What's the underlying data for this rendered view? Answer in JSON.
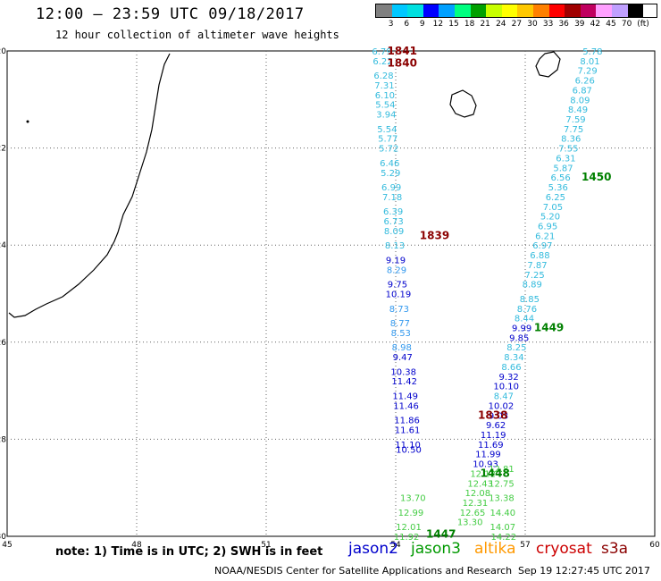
{
  "title": "12:00 – 23:59 UTC 09/18/2017",
  "subtitle": "12 hour collection of altimeter wave heights",
  "legend": {
    "unit": "(ft)",
    "ticks": [
      "3",
      "6",
      "9",
      "12",
      "15",
      "18",
      "21",
      "24",
      "27",
      "30",
      "33",
      "36",
      "39",
      "42",
      "45",
      "70"
    ],
    "colors": [
      "#808080",
      "#00c8ff",
      "#00e0e0",
      "#0000ff",
      "#00a0ff",
      "#00ff80",
      "#00a000",
      "#c8ff00",
      "#ffff00",
      "#ffc800",
      "#ff8000",
      "#ff0000",
      "#a00000",
      "#c00060",
      "#ffa0ff",
      "#c0a0ff",
      "#000000"
    ]
  },
  "axes": {
    "lon_ticks": [
      "45",
      "48",
      "51",
      "54",
      "57",
      "60"
    ],
    "lat_ticks": [
      "-20",
      "-22",
      "-24",
      "-26",
      "-28",
      "-30"
    ],
    "lon_range": [
      45,
      60
    ],
    "lat_range": [
      -20,
      -30
    ]
  },
  "tracks": [
    {
      "satellite": "jason2",
      "color": "#0000c0",
      "points": [
        {
          "lat": -20.0,
          "lon": 53.68,
          "v": "6.79",
          "c": "#33bbdd"
        },
        {
          "lat": -20.2,
          "lon": 53.7,
          "v": "6.22",
          "c": "#33bbdd"
        },
        {
          "lat": -20.5,
          "lon": 53.72,
          "v": "6.28",
          "c": "#33bbdd"
        },
        {
          "lat": -20.7,
          "lon": 53.74,
          "v": "7.31",
          "c": "#33bbdd"
        },
        {
          "lat": -20.9,
          "lon": 53.75,
          "v": "6.10",
          "c": "#33bbdd"
        },
        {
          "lat": -21.1,
          "lon": 53.76,
          "v": "5.54",
          "c": "#33bbdd"
        },
        {
          "lat": -21.3,
          "lon": 53.78,
          "v": "3.94",
          "c": "#33bbdd"
        },
        {
          "lat": -21.6,
          "lon": 53.8,
          "v": "5.54",
          "c": "#33bbdd"
        },
        {
          "lat": -21.8,
          "lon": 53.82,
          "v": "5.77",
          "c": "#33bbdd"
        },
        {
          "lat": -22.0,
          "lon": 53.84,
          "v": "5.72",
          "c": "#33bbdd"
        },
        {
          "lat": -22.3,
          "lon": 53.86,
          "v": "6.46",
          "c": "#33bbdd"
        },
        {
          "lat": -22.5,
          "lon": 53.88,
          "v": "5.29",
          "c": "#33bbdd"
        },
        {
          "lat": -22.8,
          "lon": 53.9,
          "v": "6.99",
          "c": "#33bbdd"
        },
        {
          "lat": -23.0,
          "lon": 53.92,
          "v": "7.18",
          "c": "#33bbdd"
        },
        {
          "lat": -23.3,
          "lon": 53.94,
          "v": "6.39",
          "c": "#33bbdd"
        },
        {
          "lat": -23.5,
          "lon": 53.95,
          "v": "6.73",
          "c": "#33bbdd"
        },
        {
          "lat": -23.7,
          "lon": 53.96,
          "v": "8.09",
          "c": "#33bbdd"
        },
        {
          "lat": -24.0,
          "lon": 53.98,
          "v": "8.13",
          "c": "#33bbdd"
        },
        {
          "lat": -24.3,
          "lon": 54.0,
          "v": "9.19",
          "c": "#0000cc"
        },
        {
          "lat": -24.5,
          "lon": 54.02,
          "v": "8.29",
          "c": "#3399ee"
        },
        {
          "lat": -24.8,
          "lon": 54.04,
          "v": "9.75",
          "c": "#0000cc"
        },
        {
          "lat": -25.0,
          "lon": 54.06,
          "v": "10.19",
          "c": "#0000cc"
        },
        {
          "lat": -25.3,
          "lon": 54.08,
          "v": "8.73",
          "c": "#3399ee"
        },
        {
          "lat": -25.6,
          "lon": 54.1,
          "v": "8.77",
          "c": "#3399ee"
        },
        {
          "lat": -25.8,
          "lon": 54.12,
          "v": "8.53",
          "c": "#3399ee"
        },
        {
          "lat": -26.1,
          "lon": 54.14,
          "v": "8.98",
          "c": "#3399ee"
        },
        {
          "lat": -26.3,
          "lon": 54.16,
          "v": "9.47",
          "c": "#0000cc"
        },
        {
          "lat": -26.6,
          "lon": 54.18,
          "v": "10.38",
          "c": "#0000cc"
        },
        {
          "lat": -26.8,
          "lon": 54.2,
          "v": "11.42",
          "c": "#0000cc"
        },
        {
          "lat": -27.1,
          "lon": 54.22,
          "v": "11.49",
          "c": "#0000cc"
        },
        {
          "lat": -27.3,
          "lon": 54.24,
          "v": "11.46",
          "c": "#0000cc"
        },
        {
          "lat": -27.6,
          "lon": 54.26,
          "v": "11.86",
          "c": "#0000cc"
        },
        {
          "lat": -27.8,
          "lon": 54.27,
          "v": "11.61",
          "c": "#0000cc"
        },
        {
          "lat": -28.1,
          "lon": 54.28,
          "v": "11.10",
          "c": "#0000cc"
        },
        {
          "lat": -28.2,
          "lon": 54.3,
          "v": "10.50",
          "c": "#0000cc"
        }
      ]
    },
    {
      "satellite": "jason3",
      "color": "#00a000",
      "points": [
        {
          "lat": -20.0,
          "lon": 58.56,
          "v": "5.78",
          "c": "#33bbdd"
        },
        {
          "lat": -20.2,
          "lon": 58.5,
          "v": "8.01",
          "c": "#33bbdd"
        },
        {
          "lat": -20.4,
          "lon": 58.44,
          "v": "7.29",
          "c": "#33bbdd"
        },
        {
          "lat": -20.6,
          "lon": 58.38,
          "v": "6.26",
          "c": "#33bbdd"
        },
        {
          "lat": -20.8,
          "lon": 58.32,
          "v": "6.87",
          "c": "#33bbdd"
        },
        {
          "lat": -21.0,
          "lon": 58.27,
          "v": "8.09",
          "c": "#33bbdd"
        },
        {
          "lat": -21.2,
          "lon": 58.22,
          "v": "8.49",
          "c": "#33bbdd"
        },
        {
          "lat": -21.4,
          "lon": 58.17,
          "v": "7.59",
          "c": "#33bbdd"
        },
        {
          "lat": -21.6,
          "lon": 58.12,
          "v": "7.75",
          "c": "#33bbdd"
        },
        {
          "lat": -21.8,
          "lon": 58.06,
          "v": "8.36",
          "c": "#33bbdd"
        },
        {
          "lat": -22.0,
          "lon": 58.0,
          "v": "7.55",
          "c": "#33bbdd"
        },
        {
          "lat": -22.2,
          "lon": 57.94,
          "v": "6.31",
          "c": "#33bbdd"
        },
        {
          "lat": -22.4,
          "lon": 57.88,
          "v": "5.87",
          "c": "#33bbdd"
        },
        {
          "lat": -22.6,
          "lon": 57.82,
          "v": "6.56",
          "c": "#33bbdd"
        },
        {
          "lat": -22.8,
          "lon": 57.76,
          "v": "5.36",
          "c": "#33bbdd"
        },
        {
          "lat": -23.0,
          "lon": 57.7,
          "v": "6.25",
          "c": "#33bbdd"
        },
        {
          "lat": -23.2,
          "lon": 57.64,
          "v": "7.05",
          "c": "#33bbdd"
        },
        {
          "lat": -23.4,
          "lon": 57.58,
          "v": "5.20",
          "c": "#33bbdd"
        },
        {
          "lat": -23.6,
          "lon": 57.52,
          "v": "6.95",
          "c": "#33bbdd"
        },
        {
          "lat": -23.8,
          "lon": 57.46,
          "v": "6.21",
          "c": "#33bbdd"
        },
        {
          "lat": -24.0,
          "lon": 57.4,
          "v": "6.97",
          "c": "#33bbdd"
        },
        {
          "lat": -24.2,
          "lon": 57.34,
          "v": "6.88",
          "c": "#33bbdd"
        },
        {
          "lat": -24.4,
          "lon": 57.28,
          "v": "7.87",
          "c": "#33bbdd"
        },
        {
          "lat": -24.6,
          "lon": 57.22,
          "v": "7.25",
          "c": "#33bbdd"
        },
        {
          "lat": -24.8,
          "lon": 57.16,
          "v": "8.89",
          "c": "#33bbdd"
        },
        {
          "lat": -25.1,
          "lon": 57.1,
          "v": "8.85",
          "c": "#33bbdd"
        },
        {
          "lat": -25.3,
          "lon": 57.04,
          "v": "8.76",
          "c": "#33bbdd"
        },
        {
          "lat": -25.5,
          "lon": 56.98,
          "v": "8.44",
          "c": "#33bbdd"
        },
        {
          "lat": -25.7,
          "lon": 56.92,
          "v": "9.99",
          "c": "#0000cc"
        },
        {
          "lat": -25.9,
          "lon": 56.86,
          "v": "9.85",
          "c": "#0000cc"
        },
        {
          "lat": -26.1,
          "lon": 56.8,
          "v": "8.25",
          "c": "#33bbdd"
        },
        {
          "lat": -26.3,
          "lon": 56.74,
          "v": "8.34",
          "c": "#33bbdd"
        },
        {
          "lat": -26.5,
          "lon": 56.68,
          "v": "8.66",
          "c": "#33bbdd"
        },
        {
          "lat": -26.7,
          "lon": 56.62,
          "v": "9.32",
          "c": "#0000cc"
        },
        {
          "lat": -26.9,
          "lon": 56.56,
          "v": "10.10",
          "c": "#0000cc"
        },
        {
          "lat": -27.1,
          "lon": 56.5,
          "v": "8.47",
          "c": "#33bbdd"
        },
        {
          "lat": -27.3,
          "lon": 56.44,
          "v": "10.02",
          "c": "#0000cc"
        },
        {
          "lat": -27.5,
          "lon": 56.38,
          "v": "9.03",
          "c": "#0000cc"
        },
        {
          "lat": -27.7,
          "lon": 56.32,
          "v": "9.62",
          "c": "#0000cc"
        },
        {
          "lat": -27.9,
          "lon": 56.26,
          "v": "11.19",
          "c": "#0000cc"
        },
        {
          "lat": -28.1,
          "lon": 56.2,
          "v": "11.69",
          "c": "#0000cc"
        },
        {
          "lat": -28.3,
          "lon": 56.14,
          "v": "11.99",
          "c": "#0000cc"
        },
        {
          "lat": -28.5,
          "lon": 56.08,
          "v": "10.93",
          "c": "#0000cc"
        },
        {
          "lat": -28.7,
          "lon": 56.02,
          "v": "12.12",
          "c": "#44cc44"
        },
        {
          "lat": -28.9,
          "lon": 55.96,
          "v": "12.43",
          "c": "#44cc44"
        },
        {
          "lat": -29.1,
          "lon": 55.9,
          "v": "12.08",
          "c": "#44cc44"
        },
        {
          "lat": -29.3,
          "lon": 55.84,
          "v": "12.31",
          "c": "#44cc44"
        },
        {
          "lat": -29.5,
          "lon": 55.78,
          "v": "12.65",
          "c": "#44cc44"
        },
        {
          "lat": -29.7,
          "lon": 55.72,
          "v": "13.30",
          "c": "#44cc44"
        }
      ]
    },
    {
      "satellite": "jason3b",
      "color": "#00a000",
      "points": [
        {
          "lat": -28.6,
          "lon": 56.45,
          "v": "12.81",
          "c": "#44cc44"
        },
        {
          "lat": -28.9,
          "lon": 56.45,
          "v": "12.75",
          "c": "#44cc44"
        },
        {
          "lat": -29.2,
          "lon": 56.45,
          "v": "13.38",
          "c": "#44cc44"
        },
        {
          "lat": -29.5,
          "lon": 56.48,
          "v": "14.40",
          "c": "#44cc44"
        },
        {
          "lat": -29.8,
          "lon": 56.48,
          "v": "14.07",
          "c": "#44cc44"
        },
        {
          "lat": -30.0,
          "lon": 56.5,
          "v": "14.22",
          "c": "#44cc44"
        },
        {
          "lat": -29.2,
          "lon": 54.4,
          "v": "13.70",
          "c": "#44cc44"
        },
        {
          "lat": -29.5,
          "lon": 54.35,
          "v": "12.99",
          "c": "#44cc44"
        },
        {
          "lat": -29.8,
          "lon": 54.3,
          "v": "12.01",
          "c": "#44cc44"
        },
        {
          "lat": -30.0,
          "lon": 54.25,
          "v": "11.92",
          "c": "#44cc44"
        }
      ]
    }
  ],
  "time_labels": [
    {
      "lat": -20.0,
      "lon": 54.15,
      "t": "1841",
      "c": "#8b0000"
    },
    {
      "lat": -20.25,
      "lon": 54.15,
      "t": "1840",
      "c": "#8b0000"
    },
    {
      "lat": -23.8,
      "lon": 54.9,
      "t": "1839",
      "c": "#8b0000"
    },
    {
      "lat": -27.5,
      "lon": 56.25,
      "t": "1838",
      "c": "#8b0000"
    },
    {
      "lat": -22.6,
      "lon": 58.65,
      "t": "1450",
      "c": "#008000"
    },
    {
      "lat": -25.7,
      "lon": 57.55,
      "t": "1449",
      "c": "#008000"
    },
    {
      "lat": -28.7,
      "lon": 56.3,
      "t": "1448",
      "c": "#008000"
    },
    {
      "lat": -29.95,
      "lon": 55.05,
      "t": "1447",
      "c": "#008000"
    }
  ],
  "note": "note: 1) Time is in UTC; 2) SWH is in feet",
  "satellites": [
    {
      "name": "jason2",
      "color": "#0000cc"
    },
    {
      "name": "jason3",
      "color": "#009900"
    },
    {
      "name": "altika",
      "color": "#ff9900"
    },
    {
      "name": "cryosat",
      "color": "#cc0000"
    },
    {
      "name": "s3a",
      "color": "#8b0000"
    }
  ],
  "footer": "NOAA/NESDIS Center for Satellite Applications and Research",
  "footer_time": "Sep 19 12:27:45 UTC 2017"
}
